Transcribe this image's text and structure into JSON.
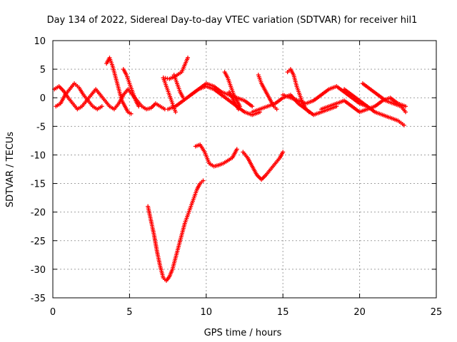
{
  "chart_data": {
    "type": "scatter",
    "title": "Day 134 of 2022, Sidereal Day-to-day VTEC variation (SDTVAR) for receiver hil1",
    "xlabel": "GPS time / hours",
    "ylabel": "SDTVAR / TECUs",
    "xlim": [
      0,
      25
    ],
    "ylim": [
      -35,
      10
    ],
    "xticks": [
      0,
      5,
      10,
      15,
      20,
      25
    ],
    "yticks": [
      10,
      5,
      0,
      -5,
      -10,
      -15,
      -20,
      -25,
      -30,
      -35
    ],
    "grid": true,
    "marker": "+",
    "color": "#ff0000",
    "series": [
      {
        "x": [
          6.2,
          6.4,
          6.6,
          6.8,
          7.0,
          7.2,
          7.4,
          7.6,
          7.8,
          8.0,
          8.2,
          8.4,
          8.6,
          8.8,
          9.0,
          9.2,
          9.4,
          9.6,
          9.8
        ],
        "y": [
          -19,
          -21.5,
          -24,
          -27,
          -29.5,
          -31.5,
          -32,
          -31.3,
          -30,
          -28,
          -26,
          -24,
          -22,
          -20.5,
          -19,
          -17.5,
          -16,
          -15,
          -14.5
        ]
      },
      {
        "x": [
          9.3,
          9.6,
          9.9,
          10.2,
          10.5,
          10.8,
          11.1,
          11.4,
          11.7,
          12.0
        ],
        "y": [
          -8.5,
          -8.2,
          -9.5,
          -11.5,
          -12,
          -11.8,
          -11.5,
          -11,
          -10.5,
          -9
        ]
      },
      {
        "x": [
          12.4,
          12.7,
          13.0,
          13.3,
          13.6,
          13.9,
          14.2,
          14.5,
          14.8,
          15.0
        ],
        "y": [
          -9.5,
          -10.5,
          -12,
          -13.5,
          -14.3,
          -13.5,
          -12.5,
          -11.5,
          -10.5,
          -9.5
        ]
      },
      {
        "x": [
          0.1,
          0.4,
          0.7,
          1.0,
          1.3,
          1.6,
          1.9,
          2.2,
          2.5,
          2.8,
          3.1,
          3.4,
          3.7,
          4.0,
          4.3,
          4.6,
          4.9,
          5.2,
          5.5,
          5.8,
          6.1,
          6.4,
          6.7,
          7.0,
          7.3
        ],
        "y": [
          1.5,
          2,
          1.2,
          0,
          -1,
          -2,
          -1.5,
          -0.5,
          0.5,
          1.5,
          0.5,
          -0.5,
          -1.5,
          -2,
          -1,
          0.5,
          1.5,
          0.5,
          -0.5,
          -1.5,
          -2,
          -1.8,
          -1,
          -1.5,
          -2
        ]
      },
      {
        "x": [
          0.2,
          0.5,
          0.8,
          1.1,
          1.4,
          1.7,
          2.0,
          2.3,
          2.6,
          2.9,
          3.2
        ],
        "y": [
          -1.5,
          -1,
          0.5,
          1.5,
          2.5,
          1.8,
          0.5,
          -0.5,
          -1.5,
          -2,
          -1.5
        ]
      },
      {
        "x": [
          3.5,
          3.7,
          3.9,
          4.1,
          4.3,
          4.5,
          4.7,
          4.9,
          5.1
        ],
        "y": [
          6,
          7,
          5.5,
          3.5,
          1.5,
          -0.5,
          -1.5,
          -2.5,
          -2.8
        ]
      },
      {
        "x": [
          4.6,
          4.8,
          5.0,
          5.2,
          5.4,
          5.6
        ],
        "y": [
          5,
          4,
          2.5,
          1,
          -0.5,
          -1.5
        ]
      },
      {
        "x": [
          7.2,
          7.6,
          8.0,
          8.4,
          8.8
        ],
        "y": [
          3.5,
          3.3,
          3.8,
          4.5,
          7
        ]
      },
      {
        "x": [
          7.2,
          7.4,
          7.6,
          7.8,
          8.0
        ],
        "y": [
          3.5,
          2,
          0.5,
          -1,
          -2.5
        ]
      },
      {
        "x": [
          7.9,
          8.1,
          8.3,
          8.5
        ],
        "y": [
          4,
          2.5,
          1,
          0
        ]
      },
      {
        "x": [
          7.5,
          8.0,
          8.5,
          9.0,
          9.5,
          10.0,
          10.5,
          11.0,
          11.5,
          12.0,
          12.5,
          13.0,
          13.5
        ],
        "y": [
          -2,
          -1.5,
          -0.5,
          0.5,
          1.5,
          2,
          1.5,
          0.5,
          -0.5,
          -1.5,
          -2.5,
          -3,
          -2.5
        ]
      },
      {
        "x": [
          9.0,
          9.5,
          10.0,
          10.5,
          11.0,
          11.5,
          12.0,
          12.5,
          13.0
        ],
        "y": [
          0.5,
          1.5,
          2.5,
          2,
          1,
          0.5,
          0,
          -0.5,
          -1.5
        ]
      },
      {
        "x": [
          11.2,
          11.4,
          11.6,
          11.8,
          12.0,
          12.2
        ],
        "y": [
          4.5,
          3.5,
          2,
          0.5,
          -0.5,
          -1.5
        ]
      },
      {
        "x": [
          11.5,
          11.7,
          11.9,
          12.1
        ],
        "y": [
          1,
          0,
          -1,
          -2
        ]
      },
      {
        "x": [
          13.4,
          13.6,
          13.8,
          14.0,
          14.2,
          14.4,
          14.6
        ],
        "y": [
          4,
          2.5,
          1.5,
          0.5,
          -0.5,
          -1.5,
          -2
        ]
      },
      {
        "x": [
          13.0,
          13.5,
          14.0,
          14.5,
          15.0,
          15.5,
          16.0,
          16.5,
          17.0,
          17.5,
          18.0,
          18.5
        ],
        "y": [
          -2.5,
          -2,
          -1.5,
          -1,
          0,
          0.5,
          -1,
          -2,
          -3,
          -2.5,
          -2,
          -1.5
        ]
      },
      {
        "x": [
          15.3,
          15.5,
          15.7,
          15.9,
          16.1,
          16.3,
          16.5,
          16.7
        ],
        "y": [
          4.5,
          5,
          4,
          2,
          0.5,
          -1,
          -2,
          -2.5
        ]
      },
      {
        "x": [
          15.0,
          15.5,
          16.0,
          16.5,
          17.0,
          17.5,
          18.0,
          18.5,
          19.0,
          19.5,
          20.0,
          20.5
        ],
        "y": [
          0.5,
          0,
          -0.5,
          -1,
          -0.5,
          0.5,
          1.5,
          2,
          1,
          0,
          -1,
          -1.5
        ]
      },
      {
        "x": [
          17.5,
          18.0,
          18.5,
          19.0,
          19.5,
          20.0,
          20.5,
          21.0,
          21.5,
          22.0,
          22.5,
          23.0
        ],
        "y": [
          -2,
          -1.5,
          -1,
          -0.5,
          -1.5,
          -2.5,
          -2,
          -1.5,
          -0.5,
          0,
          -1,
          -1.5
        ]
      },
      {
        "x": [
          19.0,
          19.5,
          20.0,
          20.5,
          21.0,
          21.5,
          22.0,
          22.5,
          22.9
        ],
        "y": [
          1.5,
          0.5,
          -0.5,
          -1.5,
          -2.5,
          -3,
          -3.5,
          -4,
          -4.8
        ]
      },
      {
        "x": [
          20.2,
          20.7,
          21.2,
          21.7,
          22.2,
          22.7,
          23.0
        ],
        "y": [
          2.5,
          1.5,
          0.5,
          -0.5,
          -1,
          -1.5,
          -2.5
        ]
      }
    ]
  }
}
